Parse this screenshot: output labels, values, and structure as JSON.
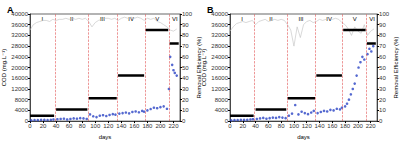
{
  "chart_data": [
    {
      "type": "line",
      "title": "A",
      "x_label": "days",
      "y_label": "COD (mg.L⁻¹)",
      "y2_label": "Removal Efficiency (%)",
      "xlim": [
        0,
        230
      ],
      "xticks": [
        0,
        20,
        40,
        60,
        80,
        100,
        120,
        140,
        160,
        180,
        200,
        220
      ],
      "ylim": [
        0,
        40000
      ],
      "yticks": [
        0,
        4000,
        8000,
        12000,
        16000,
        20000,
        24000,
        28000,
        32000,
        36000,
        40000
      ],
      "y2lim": [
        0,
        100
      ],
      "y2ticks": [
        0,
        10,
        20,
        30,
        40,
        50,
        60,
        70,
        80,
        90,
        100
      ],
      "grid": false,
      "phase_boundaries": [
        38,
        89,
        134,
        176,
        213
      ],
      "annotations": [
        {
          "text": "I",
          "x": 19
        },
        {
          "text": "II",
          "x": 64
        },
        {
          "text": "III",
          "x": 111
        },
        {
          "text": "IV",
          "x": 155
        },
        {
          "text": "V",
          "x": 195
        },
        {
          "text": "VI",
          "x": 222
        }
      ],
      "series": [
        {
          "type": "line",
          "axis": "y2",
          "color": "#c0c0c0",
          "line_style": "solid",
          "marker": "none",
          "x": [
            0,
            5,
            10,
            15,
            20,
            25,
            30,
            35,
            40,
            45,
            50,
            55,
            60,
            65,
            70,
            75,
            80,
            85,
            90,
            95,
            100,
            105,
            110,
            115,
            120,
            125,
            130,
            135,
            140,
            145,
            150,
            155,
            160,
            165,
            170,
            175,
            180,
            185,
            190,
            195,
            200,
            205,
            210,
            215,
            220,
            225
          ],
          "values": [
            85,
            90,
            92,
            93,
            94,
            94,
            93,
            95,
            94,
            95,
            95,
            96,
            95,
            96,
            95,
            96,
            95,
            96,
            93,
            88,
            92,
            94,
            95,
            96,
            96,
            95,
            96,
            94,
            96,
            97,
            96,
            97,
            96,
            97,
            96,
            94,
            96,
            95,
            96,
            93,
            92,
            90,
            88,
            85,
            84,
            86
          ]
        },
        {
          "type": "segments",
          "axis": "y",
          "color": "#000000",
          "line_style": "solid",
          "marker": "none",
          "x_start": [
            0,
            40,
            90,
            135,
            177,
            214
          ],
          "x_end": [
            37,
            88,
            133,
            175,
            212,
            228
          ],
          "values": [
            2000,
            4300,
            8500,
            17000,
            34000,
            29000
          ]
        },
        {
          "type": "scatter",
          "axis": "y",
          "color": "#2a44c4",
          "marker": "circle",
          "x": [
            2,
            7,
            12,
            17,
            22,
            27,
            32,
            36,
            42,
            47,
            52,
            57,
            62,
            67,
            72,
            77,
            82,
            87,
            92,
            97,
            102,
            107,
            112,
            117,
            122,
            127,
            131,
            137,
            142,
            147,
            152,
            157,
            162,
            167,
            172,
            175,
            180,
            185,
            190,
            195,
            200,
            205,
            210,
            213,
            215,
            218,
            220,
            222,
            225
          ],
          "values": [
            300,
            400,
            350,
            500,
            450,
            400,
            500,
            600,
            700,
            800,
            900,
            600,
            800,
            1000,
            900,
            1100,
            1000,
            800,
            2500,
            1800,
            1500,
            2000,
            2200,
            1900,
            2300,
            2600,
            2400,
            2800,
            3000,
            3200,
            2900,
            3400,
            3600,
            3300,
            3800,
            3500,
            4000,
            4500,
            5000,
            4800,
            5200,
            5500,
            4600,
            12000,
            24000,
            21000,
            19000,
            18000,
            17000
          ]
        }
      ]
    },
    {
      "type": "line",
      "title": "B",
      "x_label": "days",
      "y_label": "COD (mg.L⁻¹)",
      "y2_label": "Removal Efficiency (%)",
      "xlim": [
        0,
        230
      ],
      "xticks": [
        0,
        20,
        40,
        60,
        80,
        100,
        120,
        140,
        160,
        180,
        200,
        220
      ],
      "ylim": [
        0,
        40000
      ],
      "yticks": [
        0,
        4000,
        8000,
        12000,
        16000,
        20000,
        24000,
        28000,
        32000,
        36000,
        40000
      ],
      "y2lim": [
        0,
        100
      ],
      "y2ticks": [
        0,
        10,
        20,
        30,
        40,
        50,
        60,
        70,
        80,
        90,
        100
      ],
      "grid": false,
      "phase_boundaries": [
        38,
        89,
        134,
        176,
        213
      ],
      "annotations": [
        {
          "text": "I",
          "x": 19
        },
        {
          "text": "II",
          "x": 64
        },
        {
          "text": "III",
          "x": 111
        },
        {
          "text": "IV",
          "x": 155
        },
        {
          "text": "V",
          "x": 195
        },
        {
          "text": "VI",
          "x": 222
        }
      ],
      "series": [
        {
          "type": "line",
          "axis": "y2",
          "color": "#c0c0c0",
          "line_style": "solid",
          "marker": "none",
          "x": [
            0,
            5,
            10,
            15,
            20,
            25,
            30,
            35,
            40,
            45,
            50,
            55,
            60,
            65,
            70,
            75,
            80,
            85,
            90,
            95,
            100,
            105,
            110,
            115,
            120,
            125,
            130,
            135,
            140,
            145,
            150,
            155,
            160,
            165,
            170,
            175,
            180,
            185,
            190,
            195,
            200,
            205,
            210,
            215,
            220,
            225
          ],
          "values": [
            84,
            88,
            91,
            92,
            93,
            92,
            93,
            94,
            90,
            93,
            94,
            95,
            93,
            94,
            95,
            94,
            95,
            94,
            90,
            85,
            70,
            88,
            78,
            90,
            93,
            94,
            92,
            93,
            95,
            94,
            95,
            96,
            95,
            96,
            95,
            92,
            90,
            86,
            80,
            88,
            84,
            82,
            90,
            80,
            84,
            86
          ]
        },
        {
          "type": "segments",
          "axis": "y",
          "color": "#000000",
          "line_style": "solid",
          "marker": "none",
          "x_start": [
            0,
            40,
            90,
            135,
            177,
            214
          ],
          "x_end": [
            37,
            88,
            133,
            175,
            212,
            228
          ],
          "values": [
            2000,
            4300,
            8500,
            17000,
            34000,
            29000
          ]
        },
        {
          "type": "scatter",
          "axis": "y",
          "color": "#2a44c4",
          "marker": "circle",
          "x": [
            2,
            7,
            12,
            17,
            22,
            27,
            32,
            36,
            42,
            47,
            52,
            57,
            62,
            67,
            72,
            77,
            82,
            87,
            92,
            97,
            102,
            107,
            112,
            117,
            122,
            127,
            131,
            137,
            142,
            147,
            152,
            157,
            162,
            167,
            172,
            175,
            180,
            183,
            186,
            189,
            192,
            195,
            198,
            201,
            204,
            207,
            210,
            215,
            218,
            221,
            224
          ],
          "values": [
            300,
            350,
            400,
            500,
            450,
            500,
            600,
            700,
            800,
            1000,
            1200,
            900,
            1100,
            1300,
            1200,
            1500,
            1300,
            1100,
            2000,
            2800,
            6000,
            2500,
            3500,
            3000,
            2600,
            3200,
            3800,
            3000,
            3400,
            3800,
            3600,
            4200,
            4000,
            4600,
            4400,
            5000,
            5500,
            6500,
            8000,
            10000,
            12000,
            14000,
            17000,
            20000,
            22000,
            24000,
            23000,
            25000,
            27000,
            26000,
            28000
          ]
        }
      ]
    }
  ]
}
